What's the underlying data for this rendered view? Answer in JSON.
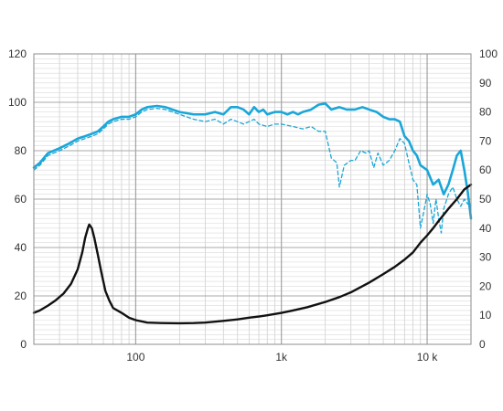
{
  "chart_data": {
    "type": "line",
    "title": "",
    "xlabel": "",
    "ylabel": "",
    "x_scale": "log",
    "xlim": [
      20,
      20000
    ],
    "ylim_left": [
      0,
      120
    ],
    "ylim_right": [
      0,
      100
    ],
    "grid": true,
    "legend": "none",
    "x_tick_labels": [
      {
        "value": 100,
        "label": "100"
      },
      {
        "value": 1000,
        "label": "1k"
      },
      {
        "value": 10000,
        "label": "10 k"
      }
    ],
    "y_left_ticks": [
      "0",
      "20",
      "40",
      "60",
      "80",
      "100",
      "120"
    ],
    "y_right_ticks": [
      "0",
      "10",
      "20",
      "30",
      "40",
      "50",
      "60",
      "70",
      "80",
      "90",
      "100"
    ],
    "series": [
      {
        "axis": "left",
        "color": "#1aa6d8",
        "style": "solid",
        "points": [
          [
            20,
            73
          ],
          [
            22,
            75
          ],
          [
            25,
            79
          ],
          [
            30,
            81
          ],
          [
            35,
            83
          ],
          [
            40,
            85
          ],
          [
            45,
            86
          ],
          [
            50,
            87
          ],
          [
            55,
            88
          ],
          [
            60,
            90
          ],
          [
            65,
            92
          ],
          [
            70,
            93
          ],
          [
            80,
            94
          ],
          [
            90,
            94
          ],
          [
            100,
            95
          ],
          [
            110,
            97
          ],
          [
            120,
            98
          ],
          [
            140,
            98.5
          ],
          [
            160,
            98
          ],
          [
            200,
            96
          ],
          [
            250,
            95
          ],
          [
            300,
            95
          ],
          [
            350,
            96
          ],
          [
            400,
            95
          ],
          [
            450,
            98
          ],
          [
            500,
            98
          ],
          [
            550,
            97
          ],
          [
            600,
            95
          ],
          [
            650,
            98
          ],
          [
            700,
            96
          ],
          [
            750,
            97
          ],
          [
            800,
            95
          ],
          [
            900,
            96
          ],
          [
            1000,
            96
          ],
          [
            1100,
            95
          ],
          [
            1200,
            96
          ],
          [
            1300,
            95
          ],
          [
            1400,
            96
          ],
          [
            1600,
            97
          ],
          [
            1800,
            99
          ],
          [
            2000,
            99.5
          ],
          [
            2200,
            97
          ],
          [
            2500,
            98
          ],
          [
            2800,
            97
          ],
          [
            3200,
            97
          ],
          [
            3600,
            98
          ],
          [
            4000,
            97
          ],
          [
            4500,
            96
          ],
          [
            5000,
            94
          ],
          [
            5500,
            93
          ],
          [
            6000,
            93
          ],
          [
            6500,
            92
          ],
          [
            7000,
            86
          ],
          [
            7500,
            84
          ],
          [
            8000,
            80
          ],
          [
            8500,
            78
          ],
          [
            9000,
            74
          ],
          [
            10000,
            72
          ],
          [
            11000,
            66
          ],
          [
            12000,
            68
          ],
          [
            13000,
            62
          ],
          [
            14000,
            66
          ],
          [
            15000,
            72
          ],
          [
            16000,
            78
          ],
          [
            17000,
            80
          ],
          [
            18000,
            72
          ],
          [
            19000,
            63
          ],
          [
            20000,
            52
          ]
        ]
      },
      {
        "axis": "left",
        "color": "#1aa6d8",
        "style": "dashed",
        "points": [
          [
            20,
            72
          ],
          [
            22,
            74
          ],
          [
            25,
            78
          ],
          [
            30,
            80
          ],
          [
            35,
            82
          ],
          [
            40,
            84
          ],
          [
            45,
            85
          ],
          [
            50,
            86
          ],
          [
            55,
            87
          ],
          [
            60,
            89
          ],
          [
            65,
            91
          ],
          [
            70,
            92
          ],
          [
            80,
            93
          ],
          [
            90,
            93
          ],
          [
            100,
            94
          ],
          [
            110,
            96
          ],
          [
            120,
            97
          ],
          [
            140,
            97.5
          ],
          [
            160,
            97
          ],
          [
            200,
            95
          ],
          [
            250,
            93
          ],
          [
            300,
            92
          ],
          [
            350,
            93
          ],
          [
            400,
            91
          ],
          [
            450,
            93
          ],
          [
            500,
            92
          ],
          [
            550,
            91
          ],
          [
            600,
            92
          ],
          [
            650,
            93
          ],
          [
            700,
            91
          ],
          [
            800,
            90
          ],
          [
            900,
            91
          ],
          [
            1000,
            91
          ],
          [
            1200,
            90
          ],
          [
            1400,
            89
          ],
          [
            1600,
            90
          ],
          [
            1800,
            88
          ],
          [
            2000,
            88
          ],
          [
            2200,
            77
          ],
          [
            2400,
            75
          ],
          [
            2500,
            65
          ],
          [
            2700,
            74
          ],
          [
            3000,
            76
          ],
          [
            3200,
            76
          ],
          [
            3500,
            80
          ],
          [
            3800,
            79
          ],
          [
            4000,
            80
          ],
          [
            4300,
            73
          ],
          [
            4600,
            79
          ],
          [
            5000,
            74
          ],
          [
            5500,
            76
          ],
          [
            6000,
            80
          ],
          [
            6500,
            85
          ],
          [
            7000,
            83
          ],
          [
            7500,
            75
          ],
          [
            8000,
            68
          ],
          [
            8500,
            66
          ],
          [
            9000,
            48
          ],
          [
            9500,
            55
          ],
          [
            10000,
            62
          ],
          [
            10500,
            58
          ],
          [
            11000,
            50
          ],
          [
            11500,
            60
          ],
          [
            12000,
            52
          ],
          [
            12500,
            46
          ],
          [
            13000,
            56
          ],
          [
            14000,
            62
          ],
          [
            15000,
            65
          ],
          [
            16000,
            60
          ],
          [
            17000,
            57
          ],
          [
            18000,
            60
          ],
          [
            19000,
            58
          ],
          [
            20000,
            57
          ]
        ]
      },
      {
        "axis": "left",
        "color": "#111111",
        "style": "solid",
        "points": [
          [
            20,
            13
          ],
          [
            22,
            14
          ],
          [
            25,
            16
          ],
          [
            28,
            18
          ],
          [
            32,
            21
          ],
          [
            36,
            25
          ],
          [
            40,
            31
          ],
          [
            43,
            38
          ],
          [
            45,
            44
          ],
          [
            47,
            48
          ],
          [
            48,
            49.5
          ],
          [
            50,
            48
          ],
          [
            52,
            44
          ],
          [
            55,
            37
          ],
          [
            58,
            30
          ],
          [
            62,
            22
          ],
          [
            66,
            18
          ],
          [
            70,
            15
          ],
          [
            80,
            13
          ],
          [
            90,
            11
          ],
          [
            100,
            10
          ],
          [
            120,
            9
          ],
          [
            150,
            8.8
          ],
          [
            200,
            8.7
          ],
          [
            250,
            8.8
          ],
          [
            300,
            9
          ],
          [
            400,
            9.7
          ],
          [
            500,
            10.3
          ],
          [
            600,
            11
          ],
          [
            700,
            11.5
          ],
          [
            800,
            12
          ],
          [
            1000,
            13
          ],
          [
            1200,
            14
          ],
          [
            1500,
            15.3
          ],
          [
            2000,
            17.5
          ],
          [
            2500,
            19.5
          ],
          [
            3000,
            21.5
          ],
          [
            4000,
            25.5
          ],
          [
            5000,
            29
          ],
          [
            6000,
            32
          ],
          [
            7000,
            35
          ],
          [
            8000,
            38
          ],
          [
            9000,
            42
          ],
          [
            10000,
            45
          ],
          [
            11000,
            48
          ],
          [
            12000,
            51
          ],
          [
            14000,
            56
          ],
          [
            16000,
            60
          ],
          [
            18000,
            64
          ],
          [
            20000,
            66
          ]
        ]
      }
    ]
  }
}
